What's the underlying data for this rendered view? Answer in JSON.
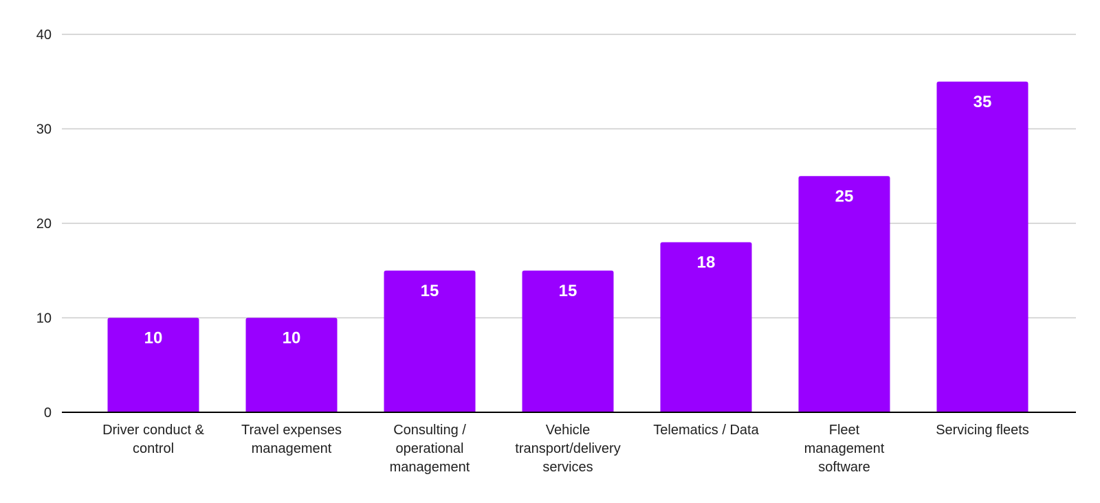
{
  "chart_data": {
    "type": "bar",
    "categories": [
      [
        "Driver conduct &",
        "control"
      ],
      [
        "Travel expenses",
        "management"
      ],
      [
        "Consulting /",
        "operational",
        "management"
      ],
      [
        "Vehicle",
        "transport/delivery",
        "services"
      ],
      [
        "Telematics / Data"
      ],
      [
        "Fleet",
        "management",
        "software"
      ],
      [
        "Servicing fleets"
      ]
    ],
    "values": [
      10,
      10,
      15,
      15,
      18,
      25,
      35
    ],
    "value_labels": [
      "10",
      "10",
      "15",
      "15",
      "18",
      "25",
      "35"
    ],
    "ylim": [
      0,
      40
    ],
    "yticks": [
      0,
      10,
      20,
      30,
      40
    ],
    "ytick_labels": [
      "0",
      "10",
      "20",
      "30",
      "40"
    ],
    "grid": true,
    "bar_color": "#9900ff",
    "grid_color": "#cccccc",
    "axis_color": "#000000"
  }
}
